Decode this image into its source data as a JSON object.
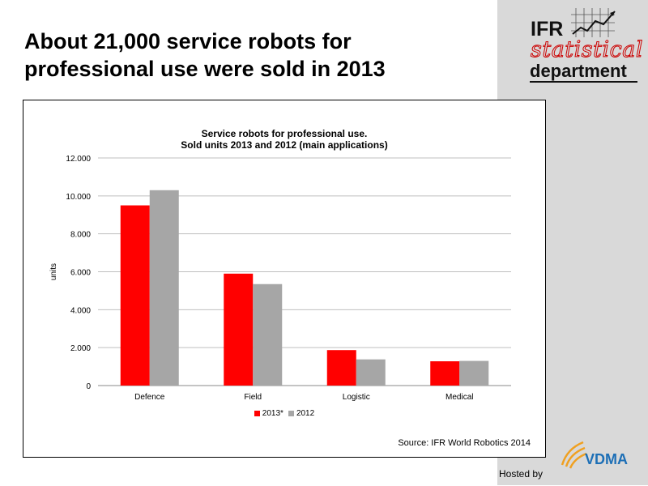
{
  "slide": {
    "title_line1": "About 21,000 service robots for",
    "title_line2": "professional use were sold in 2013",
    "hosted_by": "Hosted by",
    "source": "Source: IFR World Robotics 2014"
  },
  "logo": {
    "ifr": "IFR",
    "statistical": "statistical",
    "department": "department",
    "watermark": "statistical",
    "vdma": "VDMA"
  },
  "chart_data": {
    "type": "bar",
    "title_line1": "Service robots for professional use.",
    "title_line2": "Sold units 2013 and 2012 (main applications)",
    "categories": [
      "Defence",
      "Field",
      "Logistic",
      "Medical"
    ],
    "series": [
      {
        "name": "2013*",
        "color": "#ff0000",
        "values": [
          9500,
          5900,
          1870,
          1280
        ]
      },
      {
        "name": "2012",
        "color": "#a6a6a6",
        "values": [
          10300,
          5350,
          1380,
          1300
        ]
      }
    ],
    "ylabel": "units",
    "xlabel": "",
    "ylim": [
      0,
      12000
    ],
    "yticks": [
      0,
      2000,
      4000,
      6000,
      8000,
      10000,
      12000
    ],
    "ytick_labels": [
      "0",
      "2.000",
      "4.000",
      "6.000",
      "8.000",
      "10.000",
      "12.000"
    ],
    "grid": true,
    "legend_position": "bottom"
  }
}
